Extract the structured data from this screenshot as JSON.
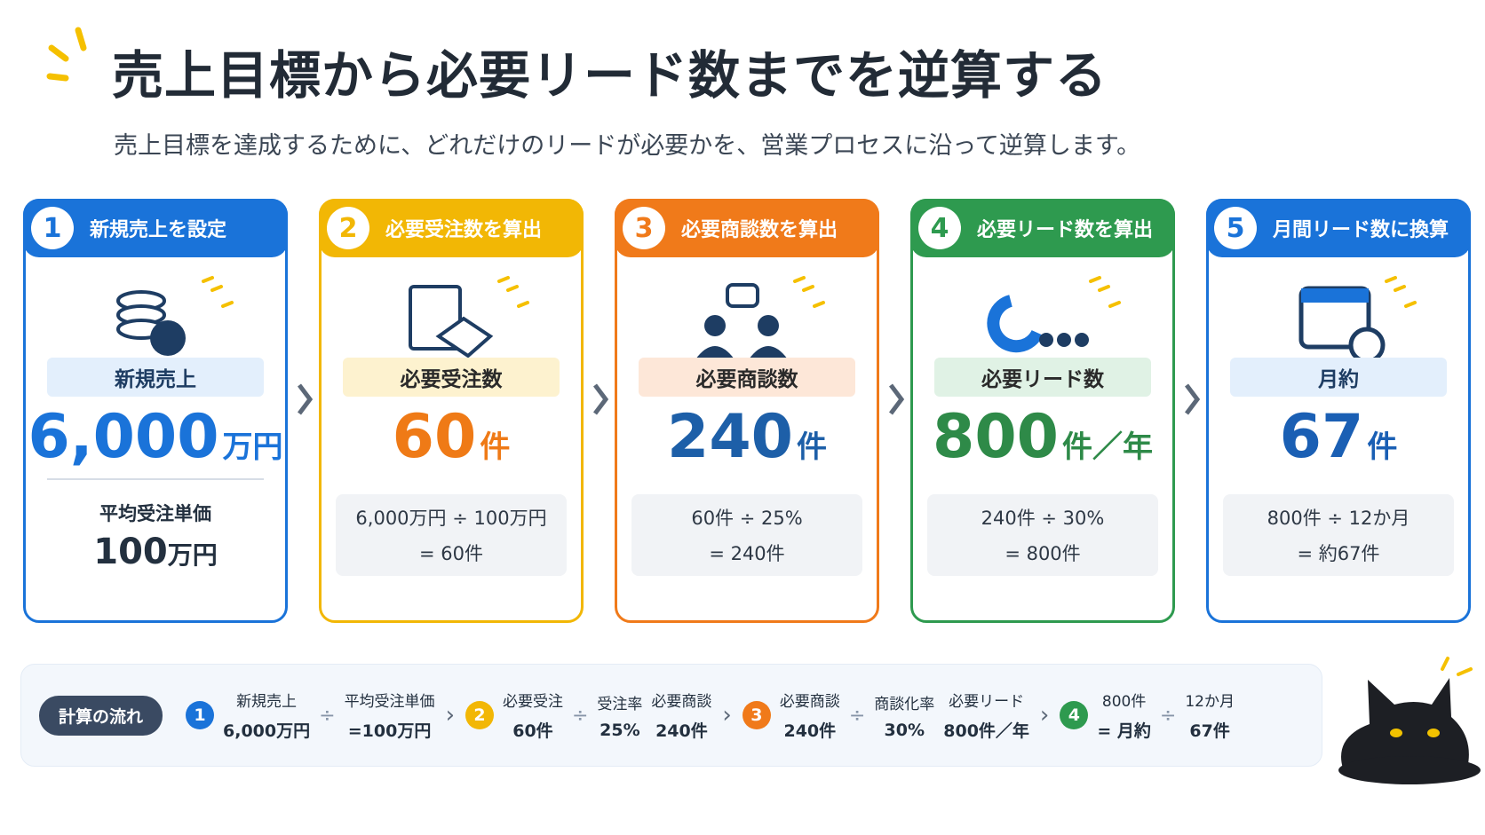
{
  "header": {
    "title": "売上目標から必要リード数までを逆算する",
    "subtitle": "売上目標を達成するために、どれだけのリードが必要かを、営業プロセスに沿って逆算します。"
  },
  "steps": [
    {
      "number": "1",
      "heading": "新規売上を設定",
      "label": "新規売上",
      "value": "6,000",
      "unit": "万円",
      "color": "#1a73d9",
      "tint": "#e3effc",
      "value_color": "#1a73d9",
      "sub_label": "平均受注単価",
      "sub_value": "100",
      "sub_unit": "万円"
    },
    {
      "number": "2",
      "heading": "必要受注数を算出",
      "label": "必要受注数",
      "value": "60",
      "unit": "件",
      "color": "#f2b705",
      "tint": "#fdf2cf",
      "value_color": "#ef7a16",
      "calc": [
        "6,000万円 ÷ 100万円",
        "= 60件"
      ]
    },
    {
      "number": "3",
      "heading": "必要商談数を算出",
      "label": "必要商談数",
      "value": "240",
      "unit": "件",
      "color": "#f07a1a",
      "tint": "#fde7d8",
      "value_color": "#1d5fa8",
      "calc": [
        "60件 ÷ 25%",
        "= 240件"
      ]
    },
    {
      "number": "4",
      "heading": "必要リード数を算出",
      "label": "必要リード数",
      "value": "800",
      "unit": "件／年",
      "color": "#2e9a4f",
      "tint": "#e0f2e5",
      "value_color": "#2e8a48",
      "calc": [
        "240件 ÷ 30%",
        "= 800件"
      ]
    },
    {
      "number": "5",
      "heading": "月間リード数に換算",
      "label": "月約",
      "value": "67",
      "unit": "件",
      "color": "#1a73d9",
      "tint": "#e3effc",
      "value_color": "#1a5fb4",
      "calc": [
        "800件 ÷ 12か月",
        "= 約67件"
      ]
    }
  ],
  "flow": {
    "label": "計算の流れ",
    "groups": [
      {
        "number": "1",
        "color": "#1a73d9",
        "cols": [
          [
            "新規売上",
            "6,000万円"
          ],
          [
            "÷"
          ],
          [
            "平均受注単価",
            "=100万円"
          ]
        ]
      },
      {
        "number": "2",
        "color": "#f2b705",
        "cols": [
          [
            "必要受注",
            "60件"
          ],
          [
            "÷"
          ],
          [
            "受注率",
            "25%"
          ],
          [
            "必要商談",
            "240件"
          ]
        ]
      },
      {
        "number": "3",
        "color": "#f07a1a",
        "cols": [
          [
            "必要商談",
            "240件"
          ],
          [
            "÷"
          ],
          [
            "商談化率",
            "30%"
          ],
          [
            "必要リード",
            "800件／年"
          ]
        ]
      },
      {
        "number": "4",
        "color": "#2e9a4f",
        "cols": [
          [
            "800件",
            "= 月約"
          ],
          [
            "÷"
          ],
          [
            "12か月",
            "67件"
          ]
        ]
      }
    ]
  }
}
